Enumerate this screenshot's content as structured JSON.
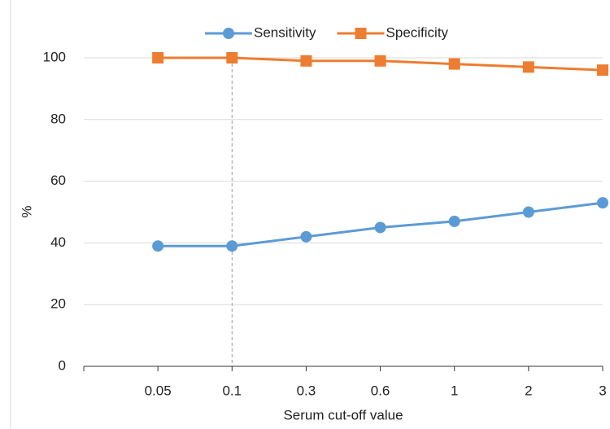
{
  "chart_data": {
    "type": "line",
    "x_label": "Serum cut-off value",
    "y_label": "%",
    "categories": [
      "0.05",
      "0.1",
      "0.3",
      "0.6",
      "1",
      "2",
      "3"
    ],
    "series": [
      {
        "name": "Sensitivity",
        "color": "#5b9bd5",
        "marker": "circle",
        "values": [
          39,
          39,
          42,
          45,
          47,
          50,
          53
        ]
      },
      {
        "name": "Specificity",
        "color": "#ed7d31",
        "marker": "square",
        "values": [
          100,
          100,
          99,
          99,
          98,
          97,
          96
        ]
      }
    ],
    "ylim": [
      0,
      100
    ],
    "yticks": [
      0,
      20,
      40,
      60,
      80,
      100
    ],
    "grid": true,
    "vline_category": "0.1",
    "legend": "top"
  }
}
